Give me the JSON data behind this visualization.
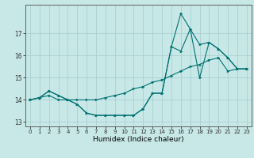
{
  "xlabel": "Humidex (Indice chaleur)",
  "background_color": "#c8e8e8",
  "grid_color": "#a8d0d0",
  "line_color": "#007070",
  "xlim": [
    -0.5,
    23.5
  ],
  "ylim": [
    12.8,
    18.3
  ],
  "yticks": [
    13,
    14,
    15,
    16,
    17
  ],
  "xticks": [
    0,
    1,
    2,
    3,
    4,
    5,
    6,
    7,
    8,
    9,
    10,
    11,
    12,
    13,
    14,
    15,
    16,
    17,
    18,
    19,
    20,
    21,
    22,
    23
  ],
  "xtick_labels": [
    "0",
    "1",
    "2",
    "3",
    "4",
    "5",
    "6",
    "7",
    "8",
    "9",
    "10",
    "11",
    "12",
    "13",
    "14",
    "15",
    "16",
    "17",
    "18",
    "19",
    "20",
    "21",
    "22",
    "23"
  ],
  "series1_x": [
    0,
    1,
    2,
    3,
    4,
    5,
    6,
    7,
    8,
    9,
    10,
    11,
    12,
    13,
    14,
    15,
    16,
    17,
    18,
    19,
    20,
    21,
    22,
    23
  ],
  "series1_y": [
    14.0,
    14.1,
    14.4,
    14.2,
    14.0,
    14.0,
    14.0,
    14.0,
    14.1,
    14.2,
    14.3,
    14.5,
    14.6,
    14.8,
    14.9,
    15.1,
    15.3,
    15.5,
    15.6,
    15.8,
    15.9,
    15.3,
    15.4,
    15.4
  ],
  "series2_x": [
    0,
    1,
    2,
    3,
    4,
    5,
    6,
    7,
    8,
    9,
    10,
    11,
    12,
    13,
    14,
    15,
    16,
    17,
    18,
    19,
    20,
    21,
    22,
    23
  ],
  "series2_y": [
    14.0,
    14.1,
    14.2,
    14.0,
    14.0,
    13.8,
    13.4,
    13.3,
    13.3,
    13.3,
    13.3,
    13.3,
    13.6,
    14.3,
    14.3,
    16.4,
    16.2,
    17.2,
    15.0,
    16.6,
    16.3,
    15.9,
    15.4,
    15.4
  ],
  "series3_x": [
    0,
    1,
    2,
    3,
    4,
    5,
    6,
    7,
    8,
    9,
    10,
    11,
    12,
    13,
    14,
    15,
    16,
    17,
    18,
    19,
    20,
    21,
    22,
    23
  ],
  "series3_y": [
    14.0,
    14.1,
    14.4,
    14.2,
    14.0,
    13.8,
    13.4,
    13.3,
    13.3,
    13.3,
    13.3,
    13.3,
    13.6,
    14.3,
    14.3,
    16.4,
    17.9,
    17.2,
    16.5,
    16.6,
    16.3,
    15.9,
    15.4,
    15.4
  ],
  "xlabel_fontsize": 6.5,
  "tick_fontsize": 5.0
}
